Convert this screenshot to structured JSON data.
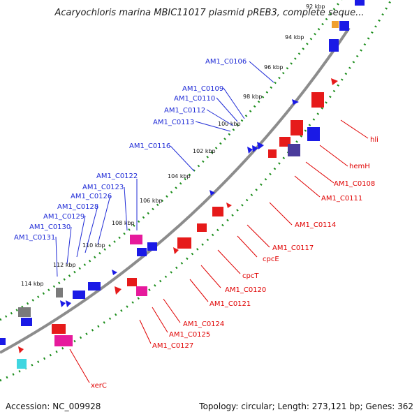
{
  "title": "Acaryochloris marina MBIC11017 plasmid pREB3, complete seque...",
  "footer": {
    "accession": "Accession: NC_009928",
    "summary": "Topology: circular; Length: 273,121 bp; Genes: 362"
  },
  "ticks": [
    "92 kbp",
    "94 kbp",
    "96 kbp",
    "98 kbp",
    "100 kbp",
    "102 kbp",
    "104 kbp",
    "106 kbp",
    "108 kbp",
    "110 kbp",
    "112 kbp",
    "114 kbp"
  ],
  "labels_forward": [
    "AM1_C0106",
    "AM1_C0109",
    "AM1_C0110",
    "AM1_C0112",
    "AM1_C0113",
    "AM1_C0116",
    "AM1_C0122",
    "AM1_C0123",
    "AM1_C0126",
    "AM1_C0128",
    "AM1_C0129",
    "AM1_C0130",
    "AM1_C0131"
  ],
  "labels_reverse": [
    "hli",
    "hemH",
    "AM1_C0108",
    "AM1_C0111",
    "AM1_C0114",
    "AM1_C0117",
    "cpcE",
    "cpcT",
    "AM1_C0120",
    "AM1_C0121",
    "AM1_C0124",
    "AM1_C0125",
    "AM1_C0127",
    "xerC"
  ],
  "colors": {
    "forward_strand": "#1a1ae6",
    "reverse_strand": "#e61a1a",
    "backbone": "#8c8c8c",
    "gc_dots": "#1a8c1a",
    "rrna": "#e61a9c",
    "trna": "#7a7a7a",
    "other": "#3fd6e0",
    "dark_blue": "#4a3c9c"
  }
}
